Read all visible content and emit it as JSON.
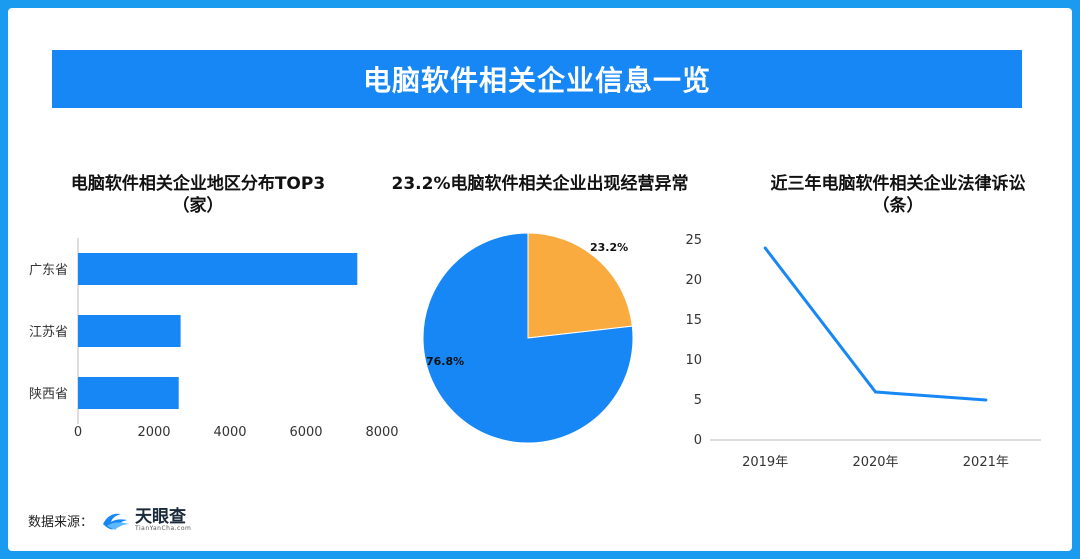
{
  "banner": {
    "title": "电脑软件相关企业信息一览"
  },
  "colors": {
    "primary": "#1787f5",
    "accent": "#f9ab3f",
    "frame": "#1a9bf0"
  },
  "chart_data": [
    {
      "type": "bar",
      "orientation": "horizontal",
      "title_line1": "电脑软件相关企业地区分布TOP3",
      "title_line2": "（家）",
      "categories": [
        "广东省",
        "江苏省",
        "陕西省"
      ],
      "values": [
        7350,
        2700,
        2650
      ],
      "xlim": [
        0,
        8000
      ],
      "xticks": [
        "0",
        "2000",
        "4000",
        "6000",
        "8000"
      ],
      "grid": false
    },
    {
      "type": "pie",
      "title": "23.2%电脑软件相关企业出现经营异常",
      "slices": [
        {
          "label": "23.2%",
          "value": 23.2,
          "color": "#f9ab3f"
        },
        {
          "label": "76.8%",
          "value": 76.8,
          "color": "#1787f5"
        }
      ]
    },
    {
      "type": "line",
      "title_line1": "近三年电脑软件相关企业法律诉讼",
      "title_line2": "（条）",
      "categories": [
        "2019年",
        "2020年",
        "2021年"
      ],
      "values": [
        24,
        6,
        5
      ],
      "ylim": [
        0,
        25
      ],
      "yticks": [
        "0",
        "5",
        "10",
        "15",
        "20",
        "25"
      ],
      "grid": false
    }
  ],
  "footer": {
    "source_label": "数据来源：",
    "logo_name": "天眼查",
    "logo_sub": "TianYanCha.com"
  }
}
